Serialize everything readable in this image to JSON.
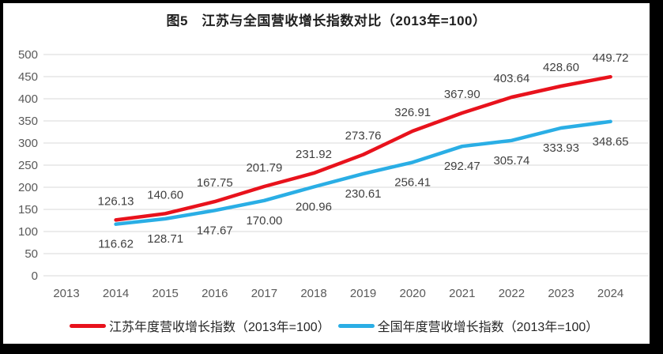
{
  "title": "图5　江苏与全国营收增长指数对比（2013年=100）",
  "chart_data": {
    "type": "line",
    "title": "图5 江苏与全国营收增长指数对比（2013年=100）",
    "categories": [
      "2013",
      "2014",
      "2015",
      "2016",
      "2017",
      "2018",
      "2019",
      "2020",
      "2021",
      "2022",
      "2023",
      "2024"
    ],
    "series": [
      {
        "name": "江苏年度营收增长指数（2013年=100）",
        "color": "#e8121c",
        "label_position": "above",
        "values": [
          null,
          126.13,
          140.6,
          167.75,
          201.79,
          231.92,
          273.76,
          326.91,
          367.9,
          403.64,
          428.6,
          449.72
        ]
      },
      {
        "name": "全国年度营收增长指数（2013年=100）",
        "color": "#2aaee5",
        "label_position": "below",
        "values": [
          null,
          116.62,
          128.71,
          147.67,
          170.0,
          200.96,
          230.61,
          256.41,
          292.47,
          305.74,
          333.93,
          348.65
        ]
      }
    ],
    "ylim": [
      0,
      500
    ],
    "ytick_step": 50,
    "grid": true,
    "legend_position": "bottom"
  },
  "style": {
    "gridline_color": "#d9d9d9",
    "axis_label_color": "#595959",
    "data_label_color": "#3f3f3f",
    "frame_color": "#000000",
    "background": "#ffffff"
  }
}
